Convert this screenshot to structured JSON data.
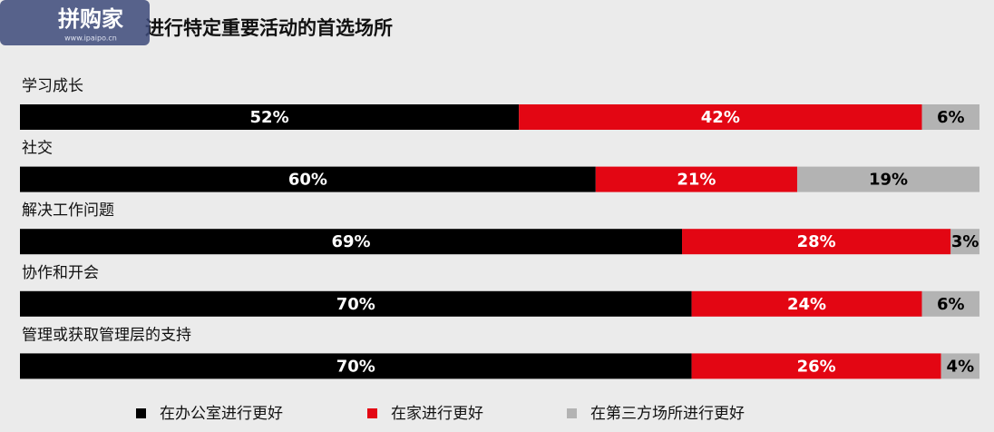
{
  "chart_data": {
    "type": "stacked-barh",
    "title": "进行特定重要活动的首选场所",
    "watermark": "拼购家",
    "watermark_url": "www.ipaipo.cn",
    "categories": [
      "学习成长",
      "社交",
      "解决工作问题",
      "协作和开会",
      "管理或获取管理层的支持"
    ],
    "xlim": [
      0,
      100
    ],
    "series": [
      {
        "name": "在办公室进行更好",
        "color": "#000000",
        "label_color": "#ffffff",
        "values": [
          52,
          60,
          69,
          70,
          70
        ],
        "value_labels": [
          "52%",
          "60%",
          "69%",
          "70%",
          "70%"
        ]
      },
      {
        "name": "在家进行更好",
        "color": "#e30613",
        "label_color": "#ffffff",
        "values": [
          42,
          21,
          28,
          24,
          26
        ],
        "value_labels": [
          "42%",
          "21%",
          "28%",
          "24%",
          "26%"
        ]
      },
      {
        "name": "在第三方场所进行更好",
        "color": "#b3b3b3",
        "label_color": "#000000",
        "values": [
          6,
          19,
          3,
          6,
          4
        ],
        "value_labels": [
          "6%",
          "19%",
          "3%",
          "6%",
          "4%"
        ]
      }
    ]
  }
}
